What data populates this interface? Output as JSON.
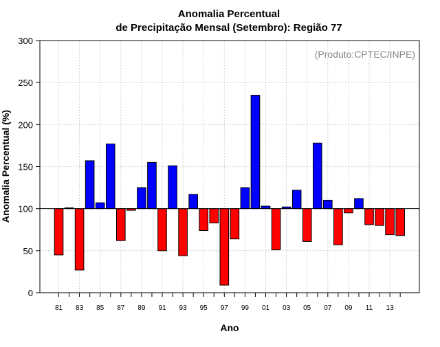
{
  "chart_data": {
    "type": "bar",
    "title": "Anomalia Percentual",
    "subtitle": "de Precipitação Mensal (Setembro): Região 77",
    "credit": "(Produto:CPTEC/INPE)",
    "xlabel": "Ano",
    "ylabel": "Anomalia Percentual (%)",
    "ylim": [
      0,
      300
    ],
    "yticks": [
      0,
      50,
      100,
      150,
      200,
      250,
      300
    ],
    "baseline": 100,
    "grid": true,
    "colors": {
      "above": "#0000ff",
      "below": "#ff0000",
      "grid": "#c8c8c8",
      "axis": "#000000"
    },
    "x_tick_labels": [
      "81",
      "83",
      "85",
      "87",
      "89",
      "91",
      "93",
      "95",
      "97",
      "99",
      "01",
      "03",
      "05",
      "07",
      "09",
      "11",
      "13"
    ],
    "categories": [
      "1981",
      "1982",
      "1983",
      "1984",
      "1985",
      "1986",
      "1987",
      "1988",
      "1989",
      "1990",
      "1991",
      "1992",
      "1993",
      "1994",
      "1995",
      "1996",
      "1997",
      "1998",
      "1999",
      "2000",
      "2001",
      "2002",
      "2003",
      "2004",
      "2005",
      "2006",
      "2007",
      "2008",
      "2009",
      "2010",
      "2011",
      "2012",
      "2013",
      "2014"
    ],
    "values": [
      45,
      101,
      27,
      157,
      107,
      177,
      62,
      98,
      125,
      155,
      50,
      151,
      44,
      117,
      74,
      83,
      9,
      64,
      125,
      235,
      103,
      51,
      102,
      122,
      61,
      178,
      110,
      57,
      95,
      112,
      81,
      80,
      69,
      68
    ]
  }
}
